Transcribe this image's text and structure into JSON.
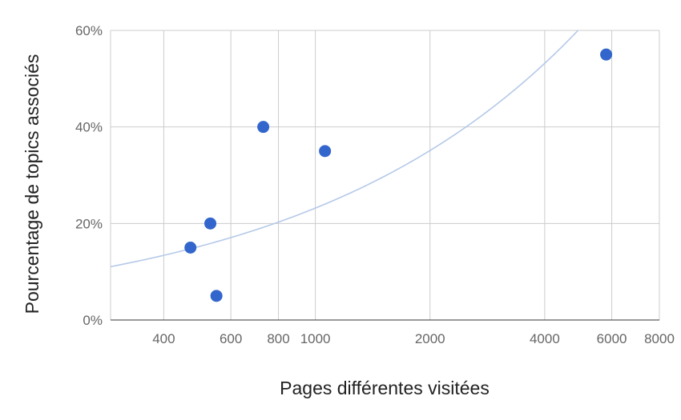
{
  "chart_data": {
    "type": "scatter",
    "xscale": "log",
    "xlim": [
      290,
      8000
    ],
    "ylim": [
      0,
      60
    ],
    "xticks": [
      {
        "value": 400,
        "label": "400"
      },
      {
        "value": 600,
        "label": "600"
      },
      {
        "value": 800,
        "label": "800"
      },
      {
        "value": 1000,
        "label": "1000"
      },
      {
        "value": 2000,
        "label": "2000"
      },
      {
        "value": 4000,
        "label": "4000"
      },
      {
        "value": 6000,
        "label": "6000"
      },
      {
        "value": 8000,
        "label": "8000"
      }
    ],
    "yticks": [
      {
        "value": 0,
        "label": "0%"
      },
      {
        "value": 20,
        "label": "20%"
      },
      {
        "value": 40,
        "label": "40%"
      },
      {
        "value": 60,
        "label": "60%"
      }
    ],
    "xlabel": "Pages différentes visitées",
    "ylabel": "Pourcentage de topics associés",
    "grid": true,
    "legend": "none",
    "points": [
      {
        "x": 470,
        "y": 15
      },
      {
        "x": 530,
        "y": 20
      },
      {
        "x": 550,
        "y": 5
      },
      {
        "x": 730,
        "y": 40
      },
      {
        "x": 1060,
        "y": 35
      },
      {
        "x": 5800,
        "y": 55
      }
    ],
    "trendline": {
      "type": "exponential",
      "x": [
        290,
        400,
        600,
        800,
        1000,
        1500,
        2000,
        3000,
        4000,
        5000
      ],
      "y": [
        11.4,
        13.5,
        16.5,
        19.9,
        23.4,
        29.1,
        34.8,
        45.8,
        53.2,
        61.2
      ]
    },
    "colors": {
      "point": "#3366cc",
      "trend": "#b5c9e8"
    }
  }
}
